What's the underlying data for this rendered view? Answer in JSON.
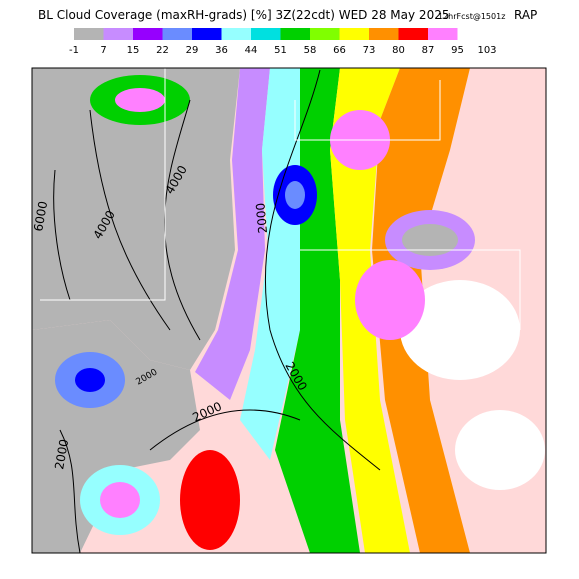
{
  "header": {
    "title": "BL Cloud Coverage (maxRH-grads) [%] 3Z(22cdt) WED 28 May 2025",
    "forecast": "12hrFcst@1501z",
    "model": "RAP"
  },
  "colorbar": {
    "labels": [
      "-1",
      "7",
      "15",
      "22",
      "29",
      "36",
      "44",
      "51",
      "58",
      "66",
      "73",
      "80",
      "87",
      "95",
      "103"
    ],
    "colors": [
      "#b4b4b4",
      "#c78cff",
      "#9600fe",
      "#6a8cff",
      "#0000ff",
      "#96ffff",
      "#00e0e0",
      "#00d000",
      "#80ff00",
      "#ffff00",
      "#ff9000",
      "#ff0000",
      "#ff80ff",
      "#ffffff"
    ]
  },
  "contours": {
    "labels": [
      "6000",
      "4000",
      "4000",
      "2000",
      "2000",
      "2000",
      "2000",
      "2000"
    ]
  }
}
